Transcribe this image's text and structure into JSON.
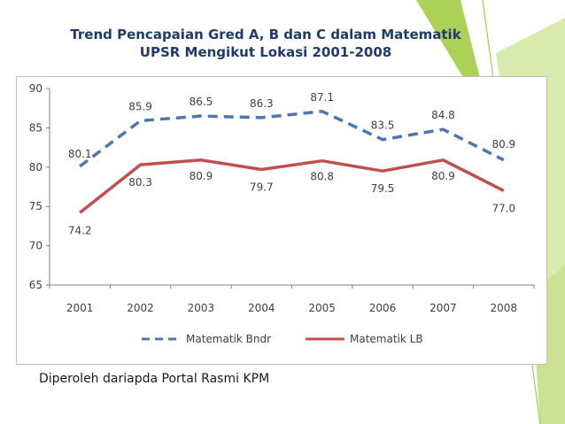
{
  "slide": {
    "title_line1": "Trend Pencapaian Gred A, B dan C dalam Matematik",
    "title_line2": "UPSR Mengikut Lokasi 2001-2008",
    "source_text": "Diperoleh dariapda Portal Rasmi KPM"
  },
  "chart_data": {
    "type": "line",
    "title": "Trend Pencapaian Gred A, B dan C dalam Matematik UPSR Mengikut Lokasi 2001-2008",
    "categories": [
      "2001",
      "2002",
      "2003",
      "2004",
      "2005",
      "2006",
      "2007",
      "2008"
    ],
    "ylim": [
      65,
      90
    ],
    "yticks": [
      65,
      70,
      75,
      80,
      85,
      90
    ],
    "legend_position": "bottom",
    "grid": false,
    "series": [
      {
        "name": "Matematik Bndr",
        "values": [
          80.1,
          85.9,
          86.5,
          86.3,
          87.1,
          83.5,
          84.8,
          80.9
        ],
        "labels": [
          "80.1",
          "85.9",
          "86.5",
          "86.3",
          "87.1",
          "83.5",
          "84.8",
          "80.9"
        ],
        "color": "#4a78b4",
        "dash": true
      },
      {
        "name": "Matematik LB",
        "values": [
          74.2,
          80.3,
          80.9,
          79.7,
          80.8,
          79.5,
          80.9,
          77.0
        ],
        "labels": [
          "74.2",
          "80.3",
          "80.9",
          "79.7",
          "80.8",
          "79.5",
          "80.9",
          "77.0"
        ],
        "color": "#c0504d",
        "dash": false
      }
    ]
  }
}
